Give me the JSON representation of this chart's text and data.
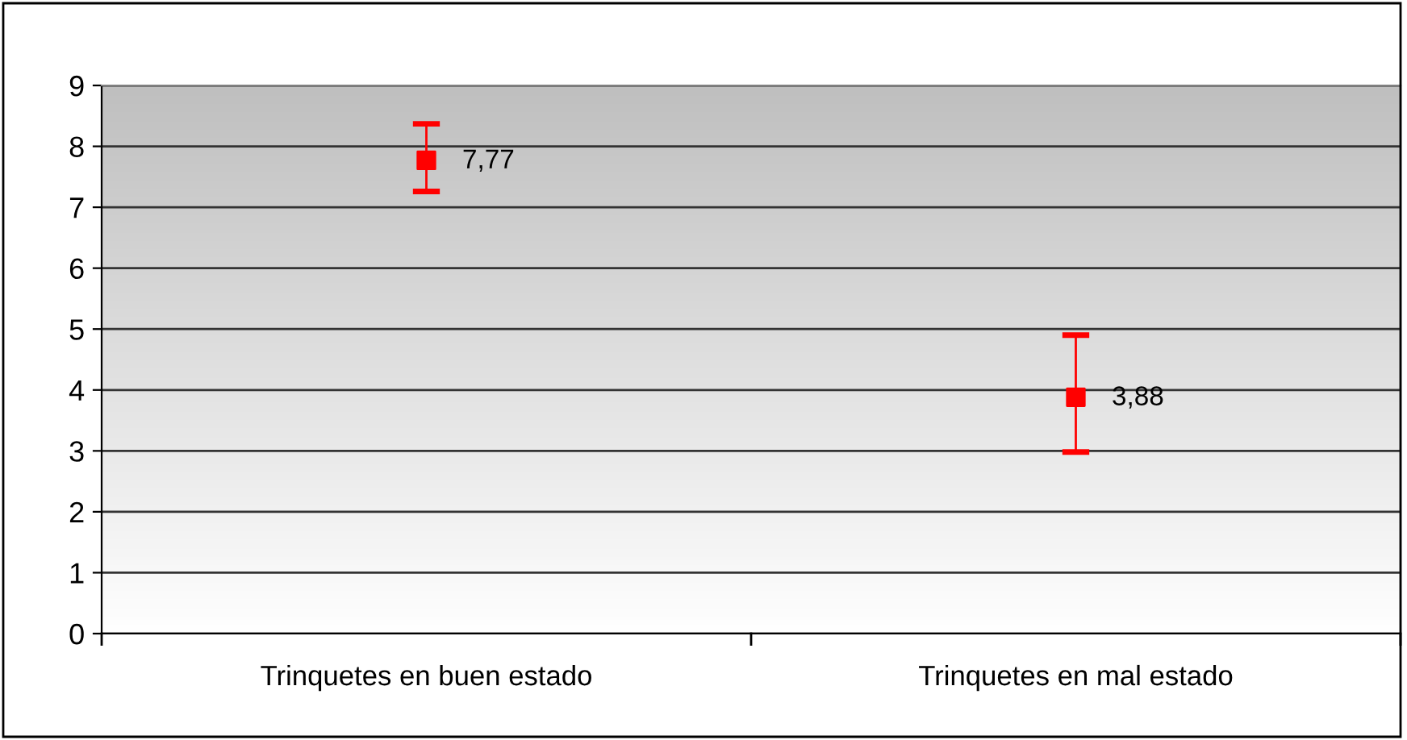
{
  "chart_data": {
    "type": "scatter",
    "categories": [
      "Trinquetes en buen estado",
      "Trinquetes en mal estado"
    ],
    "series": [
      {
        "color": "#ff0000",
        "values": [
          7.77,
          3.88
        ],
        "errors": [
          [
            7.26,
            8.37
          ],
          [
            2.98,
            4.9
          ]
        ],
        "value_labels": [
          "7,77",
          "3,88"
        ]
      }
    ],
    "ylim": [
      0,
      9
    ],
    "yticks": [
      0,
      1,
      2,
      3,
      4,
      5,
      6,
      7,
      8,
      9
    ],
    "grid": "y",
    "marker": "square",
    "legend": false
  }
}
